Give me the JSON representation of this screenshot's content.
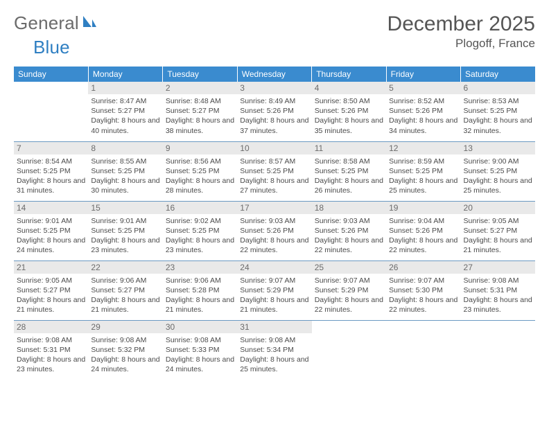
{
  "logo": {
    "word1": "General",
    "word2": "Blue"
  },
  "title": "December 2025",
  "location": "Plogoff, France",
  "colors": {
    "header_bg": "#3a8bcf",
    "header_fg": "#ffffff",
    "daynum_bg": "#e9e9e9",
    "daynum_fg": "#6b6b6b",
    "row_border": "#6a99c2",
    "text": "#4a4a4a",
    "logo_gray": "#6b6b6b",
    "logo_blue": "#2f7fc2"
  },
  "day_headers": [
    "Sunday",
    "Monday",
    "Tuesday",
    "Wednesday",
    "Thursday",
    "Friday",
    "Saturday"
  ],
  "weeks": [
    [
      {
        "n": "",
        "sunrise": "",
        "sunset": "",
        "daylight": ""
      },
      {
        "n": "1",
        "sunrise": "Sunrise: 8:47 AM",
        "sunset": "Sunset: 5:27 PM",
        "daylight": "Daylight: 8 hours and 40 minutes."
      },
      {
        "n": "2",
        "sunrise": "Sunrise: 8:48 AM",
        "sunset": "Sunset: 5:27 PM",
        "daylight": "Daylight: 8 hours and 38 minutes."
      },
      {
        "n": "3",
        "sunrise": "Sunrise: 8:49 AM",
        "sunset": "Sunset: 5:26 PM",
        "daylight": "Daylight: 8 hours and 37 minutes."
      },
      {
        "n": "4",
        "sunrise": "Sunrise: 8:50 AM",
        "sunset": "Sunset: 5:26 PM",
        "daylight": "Daylight: 8 hours and 35 minutes."
      },
      {
        "n": "5",
        "sunrise": "Sunrise: 8:52 AM",
        "sunset": "Sunset: 5:26 PM",
        "daylight": "Daylight: 8 hours and 34 minutes."
      },
      {
        "n": "6",
        "sunrise": "Sunrise: 8:53 AM",
        "sunset": "Sunset: 5:25 PM",
        "daylight": "Daylight: 8 hours and 32 minutes."
      }
    ],
    [
      {
        "n": "7",
        "sunrise": "Sunrise: 8:54 AM",
        "sunset": "Sunset: 5:25 PM",
        "daylight": "Daylight: 8 hours and 31 minutes."
      },
      {
        "n": "8",
        "sunrise": "Sunrise: 8:55 AM",
        "sunset": "Sunset: 5:25 PM",
        "daylight": "Daylight: 8 hours and 30 minutes."
      },
      {
        "n": "9",
        "sunrise": "Sunrise: 8:56 AM",
        "sunset": "Sunset: 5:25 PM",
        "daylight": "Daylight: 8 hours and 28 minutes."
      },
      {
        "n": "10",
        "sunrise": "Sunrise: 8:57 AM",
        "sunset": "Sunset: 5:25 PM",
        "daylight": "Daylight: 8 hours and 27 minutes."
      },
      {
        "n": "11",
        "sunrise": "Sunrise: 8:58 AM",
        "sunset": "Sunset: 5:25 PM",
        "daylight": "Daylight: 8 hours and 26 minutes."
      },
      {
        "n": "12",
        "sunrise": "Sunrise: 8:59 AM",
        "sunset": "Sunset: 5:25 PM",
        "daylight": "Daylight: 8 hours and 25 minutes."
      },
      {
        "n": "13",
        "sunrise": "Sunrise: 9:00 AM",
        "sunset": "Sunset: 5:25 PM",
        "daylight": "Daylight: 8 hours and 25 minutes."
      }
    ],
    [
      {
        "n": "14",
        "sunrise": "Sunrise: 9:01 AM",
        "sunset": "Sunset: 5:25 PM",
        "daylight": "Daylight: 8 hours and 24 minutes."
      },
      {
        "n": "15",
        "sunrise": "Sunrise: 9:01 AM",
        "sunset": "Sunset: 5:25 PM",
        "daylight": "Daylight: 8 hours and 23 minutes."
      },
      {
        "n": "16",
        "sunrise": "Sunrise: 9:02 AM",
        "sunset": "Sunset: 5:25 PM",
        "daylight": "Daylight: 8 hours and 23 minutes."
      },
      {
        "n": "17",
        "sunrise": "Sunrise: 9:03 AM",
        "sunset": "Sunset: 5:26 PM",
        "daylight": "Daylight: 8 hours and 22 minutes."
      },
      {
        "n": "18",
        "sunrise": "Sunrise: 9:03 AM",
        "sunset": "Sunset: 5:26 PM",
        "daylight": "Daylight: 8 hours and 22 minutes."
      },
      {
        "n": "19",
        "sunrise": "Sunrise: 9:04 AM",
        "sunset": "Sunset: 5:26 PM",
        "daylight": "Daylight: 8 hours and 22 minutes."
      },
      {
        "n": "20",
        "sunrise": "Sunrise: 9:05 AM",
        "sunset": "Sunset: 5:27 PM",
        "daylight": "Daylight: 8 hours and 21 minutes."
      }
    ],
    [
      {
        "n": "21",
        "sunrise": "Sunrise: 9:05 AM",
        "sunset": "Sunset: 5:27 PM",
        "daylight": "Daylight: 8 hours and 21 minutes."
      },
      {
        "n": "22",
        "sunrise": "Sunrise: 9:06 AM",
        "sunset": "Sunset: 5:27 PM",
        "daylight": "Daylight: 8 hours and 21 minutes."
      },
      {
        "n": "23",
        "sunrise": "Sunrise: 9:06 AM",
        "sunset": "Sunset: 5:28 PM",
        "daylight": "Daylight: 8 hours and 21 minutes."
      },
      {
        "n": "24",
        "sunrise": "Sunrise: 9:07 AM",
        "sunset": "Sunset: 5:29 PM",
        "daylight": "Daylight: 8 hours and 21 minutes."
      },
      {
        "n": "25",
        "sunrise": "Sunrise: 9:07 AM",
        "sunset": "Sunset: 5:29 PM",
        "daylight": "Daylight: 8 hours and 22 minutes."
      },
      {
        "n": "26",
        "sunrise": "Sunrise: 9:07 AM",
        "sunset": "Sunset: 5:30 PM",
        "daylight": "Daylight: 8 hours and 22 minutes."
      },
      {
        "n": "27",
        "sunrise": "Sunrise: 9:08 AM",
        "sunset": "Sunset: 5:31 PM",
        "daylight": "Daylight: 8 hours and 23 minutes."
      }
    ],
    [
      {
        "n": "28",
        "sunrise": "Sunrise: 9:08 AM",
        "sunset": "Sunset: 5:31 PM",
        "daylight": "Daylight: 8 hours and 23 minutes."
      },
      {
        "n": "29",
        "sunrise": "Sunrise: 9:08 AM",
        "sunset": "Sunset: 5:32 PM",
        "daylight": "Daylight: 8 hours and 24 minutes."
      },
      {
        "n": "30",
        "sunrise": "Sunrise: 9:08 AM",
        "sunset": "Sunset: 5:33 PM",
        "daylight": "Daylight: 8 hours and 24 minutes."
      },
      {
        "n": "31",
        "sunrise": "Sunrise: 9:08 AM",
        "sunset": "Sunset: 5:34 PM",
        "daylight": "Daylight: 8 hours and 25 minutes."
      },
      {
        "n": "",
        "sunrise": "",
        "sunset": "",
        "daylight": ""
      },
      {
        "n": "",
        "sunrise": "",
        "sunset": "",
        "daylight": ""
      },
      {
        "n": "",
        "sunrise": "",
        "sunset": "",
        "daylight": ""
      }
    ]
  ]
}
